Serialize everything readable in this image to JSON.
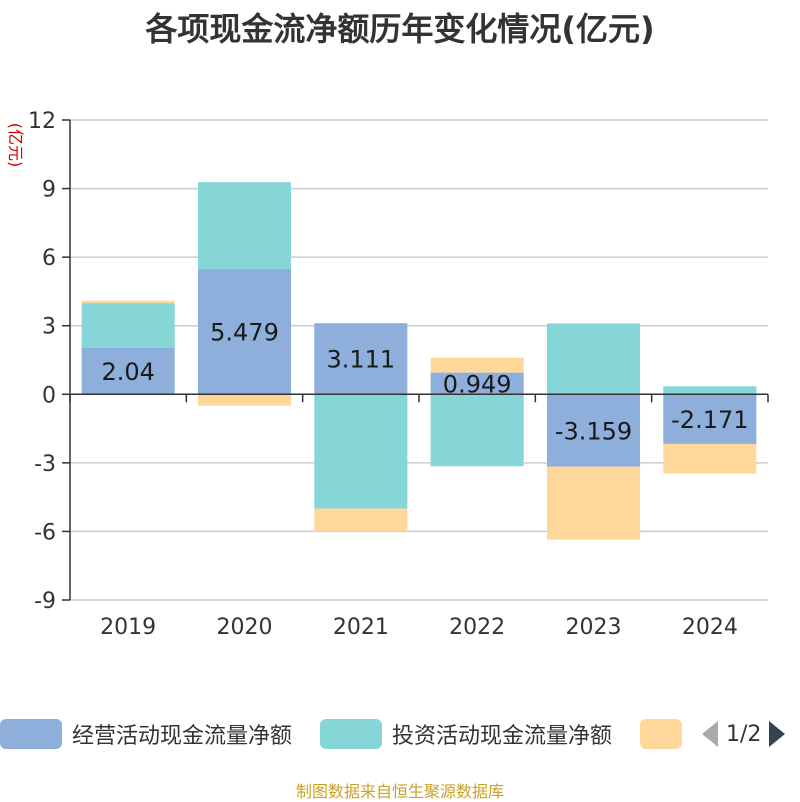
{
  "chart_data": {
    "type": "bar",
    "stacked": true,
    "title": "各项现金流净额历年变化情况(亿元)",
    "ylabel": "(亿元)",
    "categories": [
      "2019",
      "2020",
      "2021",
      "2022",
      "2023",
      "2024"
    ],
    "ylim": [
      -9,
      12
    ],
    "yticks": [
      12,
      9,
      6,
      3,
      0,
      -3,
      -6,
      -9
    ],
    "grid": true,
    "legend_position": "bottom",
    "series": [
      {
        "name": "经营活动现金流量净额",
        "color": "#8eaedb",
        "values": [
          2.04,
          5.479,
          3.111,
          0.949,
          -3.159,
          -2.171
        ],
        "show_labels": true
      },
      {
        "name": "投资活动现金流量净额",
        "color": "#86d6d8",
        "values": [
          1.95,
          3.8,
          -5.0,
          -3.15,
          3.1,
          0.35
        ],
        "show_labels": false
      },
      {
        "name": "",
        "color": "#fdd89a",
        "values": [
          0.1,
          -0.5,
          -1.0,
          0.65,
          -3.2,
          -1.3
        ],
        "show_labels": false
      }
    ]
  },
  "legend": {
    "items": [
      "经营活动现金流量净额",
      "投资活动现金流量净额",
      ""
    ],
    "page_indicator": "1/2",
    "arrow_colors": {
      "prev": "#aaaaaa",
      "next": "#2f4554"
    }
  },
  "source_note": "制图数据来自恒生聚源数据库"
}
